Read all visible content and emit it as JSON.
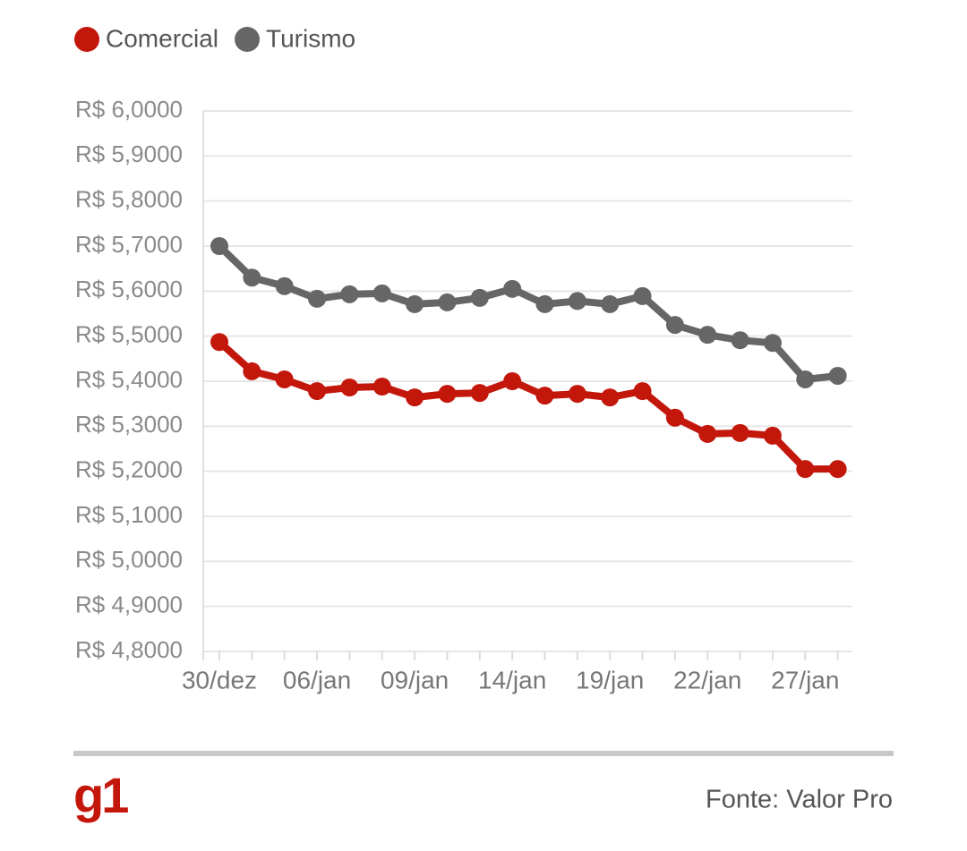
{
  "chart_data": {
    "type": "line",
    "categories": [
      "30/dez",
      null,
      null,
      "06/jan",
      null,
      null,
      "09/jan",
      null,
      null,
      "14/jan",
      null,
      null,
      "19/jan",
      null,
      null,
      "22/jan",
      null,
      null,
      "27/jan",
      null
    ],
    "series": [
      {
        "name": "Comercial",
        "color": "#c4170c",
        "values": [
          5.487,
          5.422,
          5.404,
          5.378,
          5.386,
          5.388,
          5.364,
          5.372,
          5.374,
          5.4,
          5.368,
          5.372,
          5.364,
          5.378,
          5.319,
          5.283,
          5.285,
          5.279,
          5.205,
          5.205
        ]
      },
      {
        "name": "Turismo",
        "color": "#666666",
        "values": [
          5.7,
          5.63,
          5.611,
          5.583,
          5.593,
          5.595,
          5.571,
          5.575,
          5.585,
          5.605,
          5.571,
          5.578,
          5.571,
          5.589,
          5.525,
          5.503,
          5.491,
          5.485,
          5.404,
          5.412
        ]
      }
    ],
    "ylim": [
      4.8,
      6.0
    ],
    "yticks": [
      {
        "value": 4.8,
        "label": "R$ 4,8000"
      },
      {
        "value": 4.9,
        "label": "R$ 4,9000"
      },
      {
        "value": 5.0,
        "label": "R$ 5,0000"
      },
      {
        "value": 5.1,
        "label": "R$ 5,1000"
      },
      {
        "value": 5.2,
        "label": "R$ 5,2000"
      },
      {
        "value": 5.3,
        "label": "R$ 5,3000"
      },
      {
        "value": 5.4,
        "label": "R$ 5,4000"
      },
      {
        "value": 5.5,
        "label": "R$ 5,5000"
      },
      {
        "value": 5.6,
        "label": "R$ 5,6000"
      },
      {
        "value": 5.7,
        "label": "R$ 5,7000"
      },
      {
        "value": 5.8,
        "label": "R$ 5,8000"
      },
      {
        "value": 5.9,
        "label": "R$ 5,9000"
      },
      {
        "value": 6.0,
        "label": "R$ 6,0000"
      }
    ],
    "grid": true,
    "legend": "top-left",
    "logo": "g1",
    "source": "Fonte: Valor Pro"
  }
}
